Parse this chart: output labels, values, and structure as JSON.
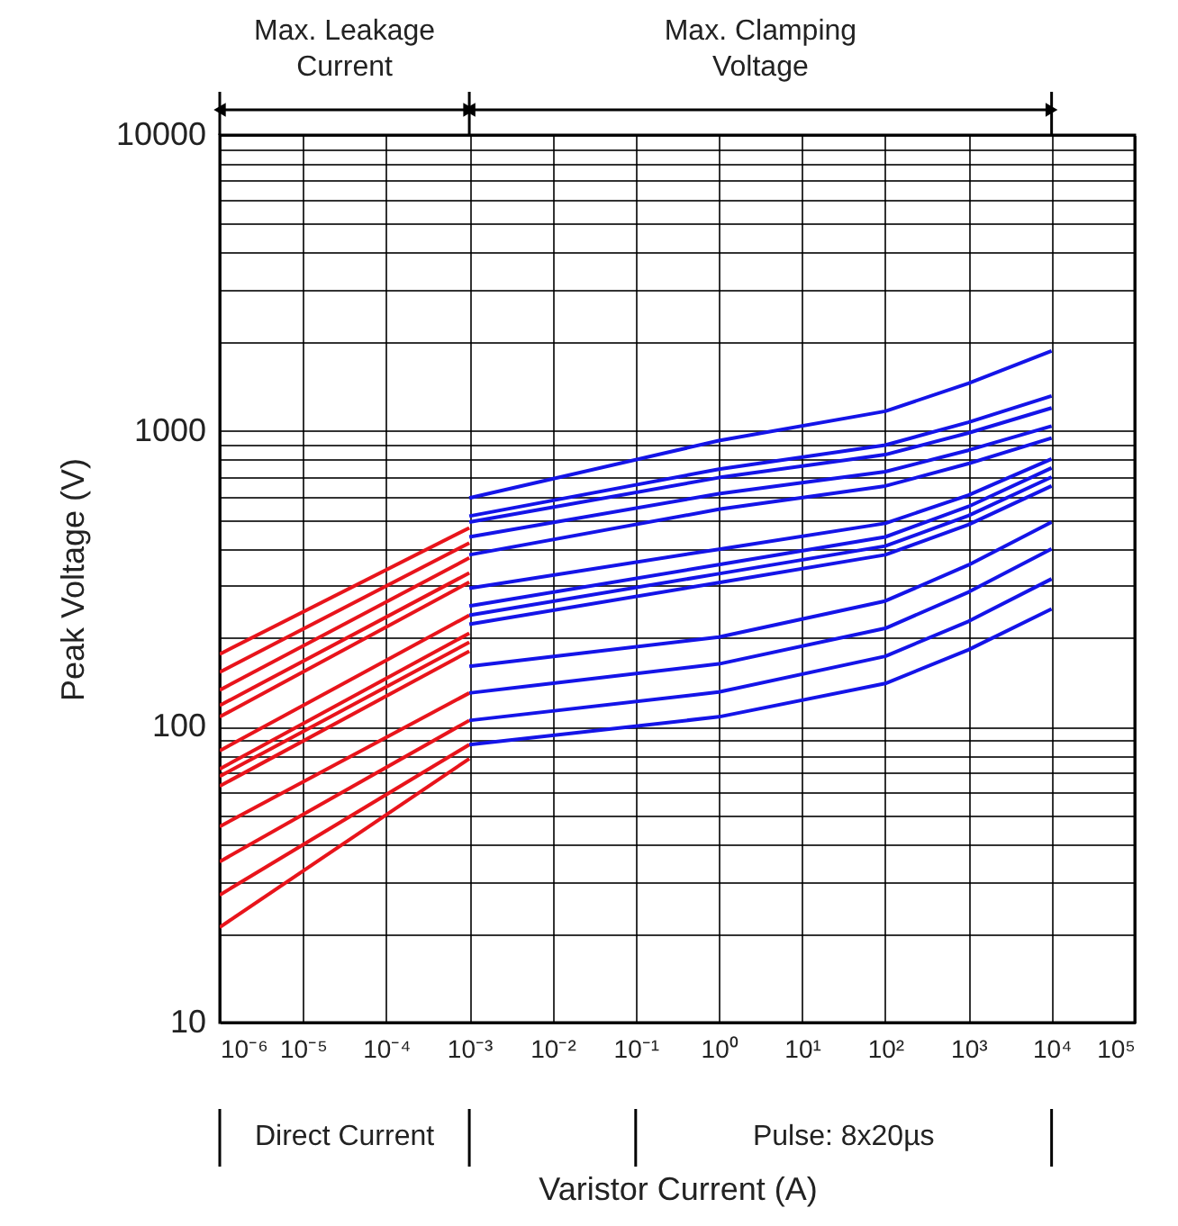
{
  "chart_data": {
    "type": "line",
    "xlabel": "Varistor Current (A)",
    "ylabel": "Peak Voltage (V)",
    "log": "xy",
    "grid": true,
    "legend": false,
    "line_style": "solid",
    "marker": "none",
    "xlim": [
      1e-06,
      100000.0
    ],
    "ylim": [
      10,
      10000
    ],
    "xticks": [
      {
        "value": 1e-06,
        "label": "10⁻⁶"
      },
      {
        "value": 1e-05,
        "label": "10⁻⁵"
      },
      {
        "value": 0.0001,
        "label": "10⁻⁴"
      },
      {
        "value": 0.001,
        "label": "10⁻³"
      },
      {
        "value": 0.01,
        "label": "10⁻²"
      },
      {
        "value": 0.1,
        "label": "10⁻¹"
      },
      {
        "value": 1,
        "label": "10⁰"
      },
      {
        "value": 10,
        "label": "10¹"
      },
      {
        "value": 100,
        "label": "10²"
      },
      {
        "value": 1000,
        "label": "10³"
      },
      {
        "value": 10000,
        "label": "10⁴"
      },
      {
        "value": 100000,
        "label": "10⁵"
      }
    ],
    "yticks": [
      10,
      {
        "value": 20,
        "label": null
      },
      {
        "value": 30,
        "label": null
      },
      {
        "value": 40,
        "label": null
      },
      {
        "value": 50,
        "label": null
      },
      {
        "value": 60,
        "label": null
      },
      {
        "value": 70,
        "label": null
      },
      {
        "value": 80,
        "label": null
      },
      {
        "value": 90,
        "label": null
      },
      100,
      {
        "value": 200,
        "label": null
      },
      {
        "value": 300,
        "label": null
      },
      {
        "value": 400,
        "label": null
      },
      {
        "value": 500,
        "label": null
      },
      {
        "value": 600,
        "label": null
      },
      {
        "value": 700,
        "label": null
      },
      {
        "value": 800,
        "label": null
      },
      {
        "value": 900,
        "label": null
      },
      1000,
      {
        "value": 2000,
        "label": null
      },
      {
        "value": 3000,
        "label": null
      },
      {
        "value": 4000,
        "label": null
      },
      {
        "value": 5000,
        "label": null
      },
      {
        "value": 6000,
        "label": null
      },
      {
        "value": 7000,
        "label": null
      },
      {
        "value": 8000,
        "label": null
      },
      {
        "value": 9000,
        "label": null
      },
      10000
    ],
    "annotations": [
      "Max. Leakage\nCurrent",
      "Max. Clamping\nVoltage",
      "Direct Current",
      "Pulse: 8x20µs"
    ],
    "series": [
      {
        "color": "#e8141b",
        "x": [
          1e-06,
          0.001
        ],
        "values": [
          176,
          470
        ]
      },
      {
        "color": "#e8141b",
        "x": [
          1e-06,
          0.001
        ],
        "values": [
          153,
          418
        ]
      },
      {
        "color": "#e8141b",
        "x": [
          1e-06,
          0.001
        ],
        "values": [
          133,
          372
        ]
      },
      {
        "color": "#e8141b",
        "x": [
          1e-06,
          0.001
        ],
        "values": [
          118,
          331
        ]
      },
      {
        "color": "#e8141b",
        "x": [
          1e-06,
          0.001
        ],
        "values": [
          108,
          308
        ]
      },
      {
        "color": "#e8141b",
        "x": [
          1e-06,
          0.001
        ],
        "values": [
          83,
          238
        ]
      },
      {
        "color": "#e8141b",
        "x": [
          1e-06,
          0.001
        ],
        "values": [
          72,
          207
        ]
      },
      {
        "color": "#e8141b",
        "x": [
          1e-06,
          0.001
        ],
        "values": [
          68,
          193
        ]
      },
      {
        "color": "#e8141b",
        "x": [
          1e-06,
          0.001
        ],
        "values": [
          63,
          180
        ]
      },
      {
        "color": "#e8141b",
        "x": [
          1e-06,
          0.001
        ],
        "values": [
          46,
          130
        ]
      },
      {
        "color": "#e8141b",
        "x": [
          1e-06,
          0.001
        ],
        "values": [
          35,
          105
        ]
      },
      {
        "color": "#e8141b",
        "x": [
          1e-06,
          0.001
        ],
        "values": [
          27,
          87
        ]
      },
      {
        "color": "#e8141b",
        "x": [
          1e-06,
          0.001
        ],
        "values": [
          21,
          78
        ]
      },
      {
        "color": "#1414e8",
        "x": [
          0.001,
          1,
          100,
          1000,
          10000
        ],
        "values": [
          593,
          927,
          1165,
          1448,
          1864
        ]
      },
      {
        "color": "#1414e8",
        "x": [
          0.001,
          1,
          100,
          1000,
          10000
        ],
        "values": [
          515,
          742,
          895,
          1069,
          1313
        ]
      },
      {
        "color": "#1414e8",
        "x": [
          0.001,
          1,
          100,
          1000,
          10000
        ],
        "values": [
          492,
          695,
          831,
          984,
          1195
        ]
      },
      {
        "color": "#1414e8",
        "x": [
          0.001,
          1,
          100,
          1000,
          10000
        ],
        "values": [
          438,
          613,
          728,
          860,
          1038
        ]
      },
      {
        "color": "#1414e8",
        "x": [
          0.001,
          1,
          100,
          1000,
          10000
        ],
        "values": [
          381,
          543,
          651,
          775,
          946
        ]
      },
      {
        "color": "#1414e8",
        "x": [
          0.001,
          1,
          100,
          1000,
          10000
        ],
        "values": [
          294,
          398,
          487,
          606,
          804
        ]
      },
      {
        "color": "#1414e8",
        "x": [
          0.001,
          1,
          100,
          1000,
          10000
        ],
        "values": [
          256,
          353,
          438,
          555,
          749
        ]
      },
      {
        "color": "#1414e8",
        "x": [
          0.001,
          1,
          100,
          1000,
          10000
        ],
        "values": [
          238,
          329,
          408,
          517,
          698
        ]
      },
      {
        "color": "#1414e8",
        "x": [
          0.001,
          1,
          100,
          1000,
          10000
        ],
        "values": [
          222,
          307,
          381,
          482,
          651
        ]
      },
      {
        "color": "#1414e8",
        "x": [
          0.001,
          1,
          100,
          1000,
          10000
        ],
        "values": [
          160,
          201,
          266,
          352,
          492
        ]
      },
      {
        "color": "#1414e8",
        "x": [
          0.001,
          1,
          100,
          1000,
          10000
        ],
        "values": [
          130,
          163,
          215,
          285,
          399
        ]
      },
      {
        "color": "#1414e8",
        "x": [
          0.001,
          1,
          100,
          1000,
          10000
        ],
        "values": [
          105,
          131,
          173,
          227,
          316
        ]
      },
      {
        "color": "#1414e8",
        "x": [
          0.001,
          1,
          100,
          1000,
          10000
        ],
        "values": [
          87,
          108,
          140,
          182,
          250
        ]
      }
    ]
  }
}
